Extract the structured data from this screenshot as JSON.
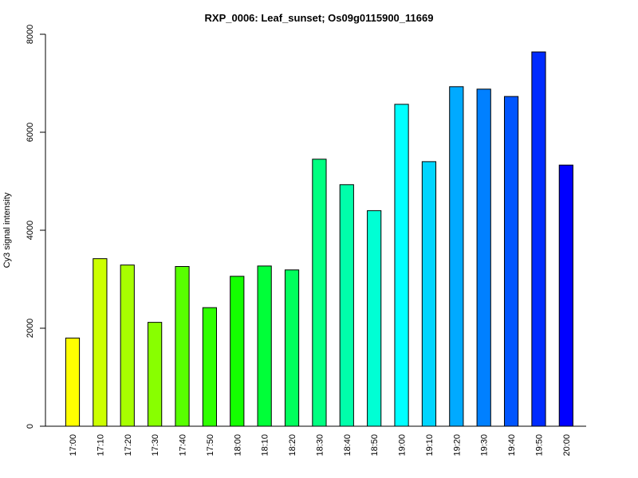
{
  "chart_data": {
    "type": "bar",
    "title": "RXP_0006: Leaf_sunset; Os09g0115900_11669",
    "xlabel": "",
    "ylabel": "Cy3 signal intensity",
    "ylim": [
      0,
      8000
    ],
    "yticks": [
      0,
      2000,
      4000,
      6000,
      8000
    ],
    "grid": false,
    "categories": [
      "17:00",
      "17:10",
      "17:20",
      "17:30",
      "17:40",
      "17:50",
      "18:00",
      "18:10",
      "18:20",
      "18:30",
      "18:40",
      "18:50",
      "19:00",
      "19:10",
      "19:20",
      "19:30",
      "19:40",
      "19:50",
      "20:00"
    ],
    "values": [
      1800,
      3420,
      3290,
      2120,
      3260,
      2420,
      3060,
      3270,
      3190,
      5450,
      4930,
      4400,
      6570,
      5400,
      6930,
      6880,
      6730,
      7640,
      5330
    ],
    "colors": [
      "#FFFF00",
      "#CCFF00",
      "#A8FF00",
      "#88FF00",
      "#58FF00",
      "#2EFF00",
      "#14FF00",
      "#00FF38",
      "#00FF5C",
      "#00FF80",
      "#00FFAA",
      "#00FFD4",
      "#00FFFF",
      "#00D5FF",
      "#00AAFF",
      "#0080FF",
      "#0055FF",
      "#002BFF",
      "#0000FF"
    ]
  }
}
